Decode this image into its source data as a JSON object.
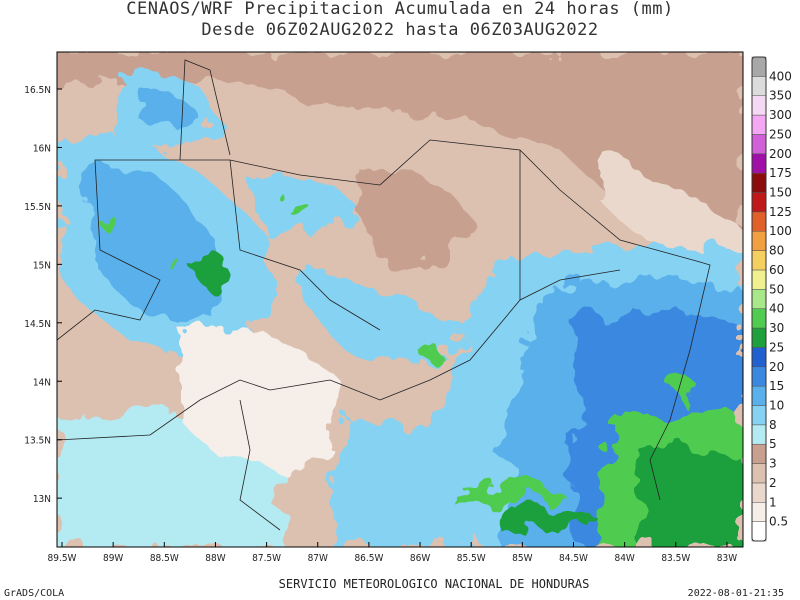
{
  "title": "CENAOS/WRF Precipitacion Acumulada en 24 horas (mm)",
  "subtitle": "Desde 06Z02AUG2022 hasta 06Z03AUG2022",
  "latitude_labels": [
    "16.5N",
    "16N",
    "15.5N",
    "15N",
    "14.5N",
    "14N",
    "13.5N",
    "13N"
  ],
  "longitude_labels": [
    "89.5W",
    "89W",
    "88.5W",
    "88W",
    "87.5W",
    "87W",
    "86.5W",
    "86W",
    "85.5W",
    "85W",
    "84.5W",
    "84W",
    "83.5W",
    "83W"
  ],
  "colorbar": {
    "labels": [
      0.5,
      1,
      2,
      3,
      5,
      8,
      10,
      15,
      20,
      25,
      30,
      40,
      50,
      60,
      80,
      100,
      125,
      150,
      175,
      200,
      250,
      300,
      350,
      400
    ],
    "colors": [
      "#ffffff",
      "#f6eee8",
      "#ead8cc",
      "#dcc0b0",
      "#c8a090",
      "#b4eaf2",
      "#86d2f2",
      "#5ab0ea",
      "#3a88e0",
      "#2060d0",
      "#1ea03c",
      "#50cc50",
      "#a8e88a",
      "#f0f090",
      "#f5d060",
      "#f0a040",
      "#e06028",
      "#c01818",
      "#8c0c0c",
      "#a010a8",
      "#d060d8",
      "#f4a8f4",
      "#f4d8f4",
      "#dcdcdc",
      "#a8a8a8"
    ]
  },
  "footer": {
    "left": "GrADS/COLA",
    "center": "SERVICIO METEOROLOGICO NACIONAL DE HONDURAS",
    "right": "2022-08-01-21:35"
  }
}
